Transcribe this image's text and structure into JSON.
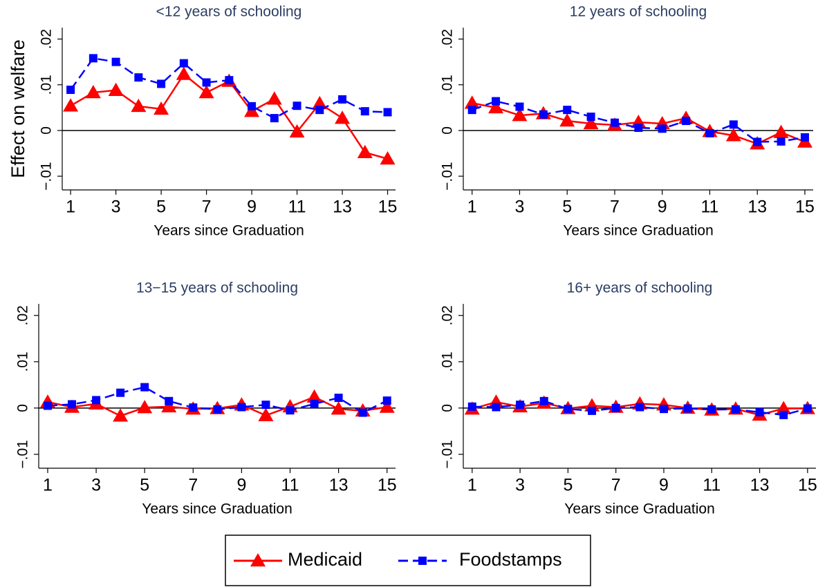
{
  "chart_data": [
    {
      "type": "line",
      "title": "<12 years of schooling",
      "xlabel": "Years since Graduation",
      "ylabel": "Effect on welfare",
      "x": [
        1,
        2,
        3,
        4,
        5,
        6,
        7,
        8,
        9,
        10,
        11,
        12,
        13,
        14,
        15
      ],
      "series": [
        {
          "name": "Medicaid",
          "color": "#ff0000",
          "marker": "triangle",
          "dashed": false,
          "values": [
            0.0054,
            0.0083,
            0.0088,
            0.0053,
            0.0047,
            0.0123,
            0.0083,
            0.0108,
            0.0042,
            0.0069,
            -0.0003,
            0.0059,
            0.0027,
            -0.0048,
            -0.0062
          ]
        },
        {
          "name": "Foodstamps",
          "color": "#0000ff",
          "marker": "square",
          "dashed": true,
          "values": [
            0.0089,
            0.0158,
            0.015,
            0.0116,
            0.0102,
            0.0147,
            0.0105,
            0.011,
            0.0053,
            0.0027,
            0.0054,
            0.0045,
            0.0068,
            0.0042,
            0.004
          ]
        }
      ],
      "xlim": [
        0.63,
        15.35
      ],
      "ylim": [
        -0.013,
        0.0225
      ],
      "xticks": [
        1,
        3,
        5,
        7,
        9,
        11,
        13,
        15
      ],
      "yticks": [
        {
          "value": -0.01,
          "label": "−.01"
        },
        0,
        {
          "value": 0.01,
          "label": ".01"
        },
        {
          "value": 0.02,
          "label": ".02"
        }
      ]
    },
    {
      "type": "line",
      "title": "12 years of schooling",
      "xlabel": "Years since Graduation",
      "x": [
        1,
        2,
        3,
        4,
        5,
        6,
        7,
        8,
        9,
        10,
        11,
        12,
        13,
        14,
        15
      ],
      "series": [
        {
          "name": "Medicaid",
          "color": "#ff0000",
          "marker": "triangle",
          "dashed": false,
          "values": [
            0.006,
            0.005,
            0.0033,
            0.0037,
            0.0021,
            0.0015,
            0.0012,
            0.0018,
            0.0015,
            0.0027,
            -0.0002,
            -0.0011,
            -0.0029,
            -0.0004,
            -0.0025
          ]
        },
        {
          "name": "Foodstamps",
          "color": "#0000ff",
          "marker": "square",
          "dashed": true,
          "values": [
            0.0045,
            0.0064,
            0.0052,
            0.0035,
            0.0045,
            0.003,
            0.0017,
            0.0006,
            0.0004,
            0.0021,
            -0.0006,
            0.0013,
            -0.0025,
            -0.0024,
            -0.0015
          ]
        }
      ],
      "xlim": [
        0.63,
        15.35
      ],
      "ylim": [
        -0.013,
        0.0225
      ],
      "xticks": [
        1,
        3,
        5,
        7,
        9,
        11,
        13,
        15
      ],
      "yticks": [
        {
          "value": -0.01,
          "label": "−.01"
        },
        0,
        {
          "value": 0.01,
          "label": ".01"
        },
        {
          "value": 0.02,
          "label": ".02"
        }
      ]
    },
    {
      "type": "line",
      "title": "13−15 years of schooling",
      "xlabel": "Years since Graduation",
      "x": [
        1,
        2,
        3,
        4,
        5,
        6,
        7,
        8,
        9,
        10,
        11,
        12,
        13,
        14,
        15
      ],
      "series": [
        {
          "name": "Medicaid",
          "color": "#ff0000",
          "marker": "triangle",
          "dashed": false,
          "values": [
            0.0013,
            0.0002,
            0.0009,
            -0.0017,
            0.0001,
            0.0003,
            -0.0002,
            -0.0001,
            0.0007,
            -0.0016,
            0.0003,
            0.0024,
            -0.0002,
            -0.0006,
            0.0002
          ]
        },
        {
          "name": "Foodstamps",
          "color": "#0000ff",
          "marker": "square",
          "dashed": true,
          "values": [
            0.0005,
            0.0008,
            0.0017,
            0.0033,
            0.0045,
            0.0015,
            0.0001,
            -0.0003,
            0.0002,
            0.0007,
            -0.0005,
            0.0009,
            0.0022,
            -0.001,
            0.0016
          ]
        }
      ],
      "xlim": [
        0.63,
        15.35
      ],
      "ylim": [
        -0.013,
        0.0225
      ],
      "xticks": [
        1,
        3,
        5,
        7,
        9,
        11,
        13,
        15
      ],
      "yticks": [
        {
          "value": -0.01,
          "label": "−.01"
        },
        0,
        {
          "value": 0.01,
          "label": ".01"
        },
        {
          "value": 0.02,
          "label": ".02"
        }
      ]
    },
    {
      "type": "line",
      "title": "16+ years of schooling",
      "xlabel": "Years since Graduation",
      "x": [
        1,
        2,
        3,
        4,
        5,
        6,
        7,
        8,
        9,
        10,
        11,
        12,
        13,
        14,
        15
      ],
      "series": [
        {
          "name": "Medicaid",
          "color": "#ff0000",
          "marker": "triangle",
          "dashed": false,
          "values": [
            -0.0002,
            0.0013,
            0.0003,
            0.0011,
            -0.0001,
            0.0005,
            0.0002,
            0.0009,
            0.0007,
            0,
            -0.0004,
            -0.0002,
            -0.0015,
            -0.0001,
            -0.0001
          ]
        },
        {
          "name": "Foodstamps",
          "color": "#0000ff",
          "marker": "square",
          "dashed": true,
          "values": [
            0.0003,
            0.0002,
            0.0007,
            0.0015,
            -0.0002,
            -0.0006,
            0,
            0.0002,
            -0.0002,
            -0.0001,
            -0.0003,
            -0.0003,
            -0.0009,
            -0.0015,
            -0.0001
          ]
        }
      ],
      "xlim": [
        0.63,
        15.35
      ],
      "ylim": [
        -0.013,
        0.0225
      ],
      "xticks": [
        1,
        3,
        5,
        7,
        9,
        11,
        13,
        15
      ],
      "yticks": [
        {
          "value": -0.01,
          "label": "−.01"
        },
        0,
        {
          "value": 0.01,
          "label": ".01"
        },
        {
          "value": 0.02,
          "label": ".02"
        }
      ]
    }
  ]
}
